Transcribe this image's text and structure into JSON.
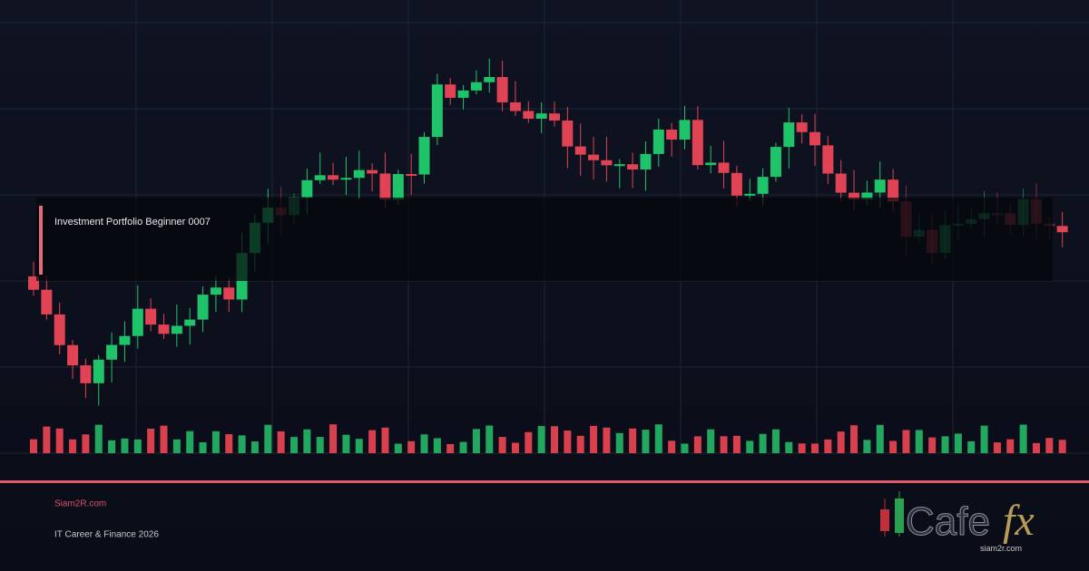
{
  "header": {
    "title": "Investment Portfolio Beginner 0007"
  },
  "footer": {
    "site": "Siam2R.com",
    "tagline": "IT Career & Finance 2026"
  },
  "logo": {
    "word": "Cafe",
    "accent": "fx",
    "url": "siam2r.com"
  }
}
